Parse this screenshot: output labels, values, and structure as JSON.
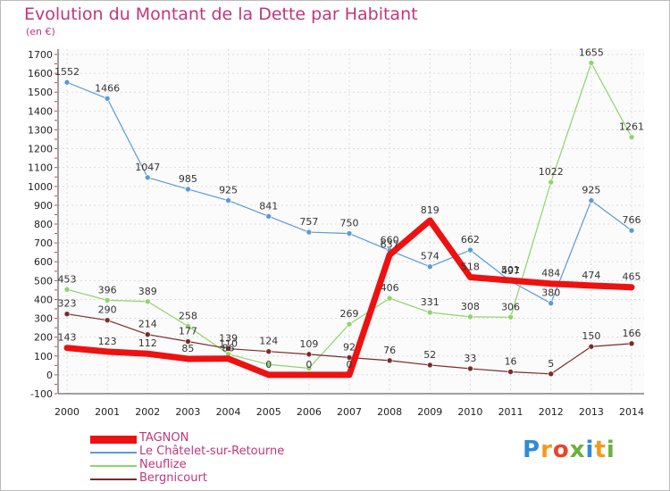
{
  "title": "Evolution du Montant de la Dette par Habitant",
  "unit": "(en €)",
  "logo": "Proxiti",
  "logo_letters": [
    {
      "ch": "P",
      "color": "#2e8bd6"
    },
    {
      "ch": "r",
      "color": "#f39a1d"
    },
    {
      "ch": "o",
      "color": "#e8452c"
    },
    {
      "ch": "x",
      "color": "#6ab23a"
    },
    {
      "ch": "i",
      "color": "#2e8bd6"
    },
    {
      "ch": "t",
      "color": "#f39a1d"
    },
    {
      "ch": "i",
      "color": "#6ab23a"
    }
  ],
  "chart_data": {
    "type": "line",
    "x": [
      "2000",
      "2001",
      "2002",
      "2003",
      "2004",
      "2005",
      "2006",
      "2007",
      "2008",
      "2009",
      "2010",
      "2011",
      "2012",
      "2013",
      "2014"
    ],
    "ylim": [
      -100,
      1700
    ],
    "yticks": [
      -100,
      0,
      100,
      200,
      300,
      400,
      500,
      600,
      700,
      800,
      900,
      1000,
      1100,
      1200,
      1300,
      1400,
      1500,
      1600,
      1700
    ],
    "grid": true,
    "legend_position": "bottom-left",
    "series": [
      {
        "name": "Le Châtelet-sur-Retourne",
        "color": "#5b9bd5",
        "width": 1.2,
        "marker": true,
        "values": [
          1552,
          1466,
          1047,
          985,
          925,
          841,
          757,
          750,
          660,
          574,
          662,
          497,
          380,
          925,
          766
        ],
        "labels": [
          "1552",
          "1466",
          "1047",
          "985",
          "925",
          "841",
          "757",
          "750",
          "660",
          "574",
          "662",
          "497",
          "380",
          "925",
          "766"
        ]
      },
      {
        "name": "Neuflize",
        "color": "#8ed46a",
        "width": 1.2,
        "marker": true,
        "values": [
          453,
          396,
          389,
          258,
          110,
          55,
          35,
          269,
          406,
          331,
          308,
          306,
          1022,
          1655,
          1261
        ],
        "labels": [
          "453",
          "396",
          "389",
          "258",
          "110",
          "",
          "",
          "269",
          "406",
          "331",
          "308",
          "306",
          "1022",
          "1655",
          "1261"
        ]
      },
      {
        "name": "Bergnicourt",
        "color": "#7a2a2a",
        "width": 1.2,
        "marker": true,
        "values": [
          323,
          290,
          214,
          177,
          139,
          124,
          109,
          92,
          76,
          52,
          33,
          16,
          5,
          150,
          166
        ],
        "labels": [
          "323",
          "290",
          "214",
          "177",
          "139",
          "124",
          "109",
          "92",
          "76",
          "52",
          "33",
          "16",
          "5",
          "150",
          "166"
        ]
      },
      {
        "name": "TAGNON",
        "color": "#ee1111",
        "width": 7,
        "marker": true,
        "values": [
          143,
          123,
          112,
          85,
          86,
          0,
          0,
          0,
          637,
          819,
          518,
          501,
          484,
          474,
          465
        ],
        "labels": [
          "143",
          "123",
          "112",
          "85",
          "86",
          "0",
          "0",
          "0",
          "637",
          "819",
          "518",
          "501",
          "484",
          "474",
          "465"
        ]
      }
    ]
  }
}
